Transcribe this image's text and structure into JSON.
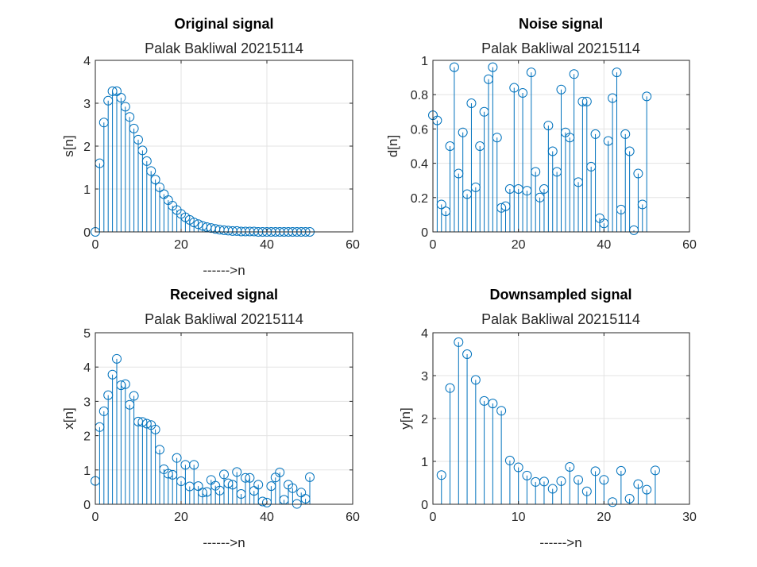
{
  "chart_data": [
    {
      "type": "stem",
      "title": "Original signal",
      "subtitle": "Palak Bakliwal 20215114",
      "xlabel": "------>n",
      "ylabel": "s[n]",
      "xlim": [
        0,
        60
      ],
      "ylim": [
        0,
        4
      ],
      "xticks": [
        0,
        20,
        40,
        60
      ],
      "yticks": [
        0,
        1,
        2,
        3,
        4
      ],
      "grid": true,
      "x": [
        0,
        1,
        2,
        3,
        4,
        5,
        6,
        7,
        8,
        9,
        10,
        11,
        12,
        13,
        14,
        15,
        16,
        17,
        18,
        19,
        20,
        21,
        22,
        23,
        24,
        25,
        26,
        27,
        28,
        29,
        30,
        31,
        32,
        33,
        34,
        35,
        36,
        37,
        38,
        39,
        40,
        41,
        42,
        43,
        44,
        45,
        46,
        47,
        48,
        49,
        50
      ],
      "values": [
        0,
        1.6,
        2.55,
        3.06,
        3.28,
        3.28,
        3.13,
        2.92,
        2.68,
        2.41,
        2.15,
        1.9,
        1.65,
        1.42,
        1.22,
        1.04,
        0.88,
        0.74,
        0.61,
        0.51,
        0.42,
        0.34,
        0.28,
        0.22,
        0.18,
        0.14,
        0.11,
        0.09,
        0.07,
        0.05,
        0.04,
        0.03,
        0.02,
        0.02,
        0.01,
        0.01,
        0.01,
        0.01,
        0,
        0,
        0,
        0,
        0,
        0,
        0,
        0,
        0,
        0,
        0,
        0,
        0
      ]
    },
    {
      "type": "stem",
      "title": "Noise signal",
      "subtitle": "Palak Bakliwal 20215114",
      "xlabel": "",
      "ylabel": "d[n]",
      "xlim": [
        0,
        60
      ],
      "ylim": [
        0,
        1
      ],
      "xticks": [
        0,
        20,
        40,
        60
      ],
      "yticks": [
        0,
        0.2,
        0.4,
        0.6,
        0.8,
        1
      ],
      "grid": true,
      "x": [
        0,
        1,
        2,
        3,
        4,
        5,
        6,
        7,
        8,
        9,
        10,
        11,
        12,
        13,
        14,
        15,
        16,
        17,
        18,
        19,
        20,
        21,
        22,
        23,
        24,
        25,
        26,
        27,
        28,
        29,
        30,
        31,
        32,
        33,
        34,
        35,
        36,
        37,
        38,
        39,
        40,
        41,
        42,
        43,
        44,
        45,
        46,
        47,
        48,
        49,
        50
      ],
      "values": [
        0.68,
        0.65,
        0.16,
        0.12,
        0.5,
        0.96,
        0.34,
        0.58,
        0.22,
        0.75,
        0.26,
        0.5,
        0.7,
        0.89,
        0.96,
        0.55,
        0.14,
        0.15,
        0.25,
        0.84,
        0.25,
        0.81,
        0.24,
        0.93,
        0.35,
        0.2,
        0.25,
        0.62,
        0.47,
        0.35,
        0.83,
        0.58,
        0.55,
        0.92,
        0.29,
        0.76,
        0.76,
        0.38,
        0.57,
        0.08,
        0.05,
        0.53,
        0.78,
        0.93,
        0.13,
        0.57,
        0.47,
        0.01,
        0.34,
        0.16,
        0.79
      ]
    },
    {
      "type": "stem",
      "title": "Received signal",
      "subtitle": "Palak Bakliwal 20215114",
      "xlabel": "------>n",
      "ylabel": "x[n]",
      "xlim": [
        0,
        60
      ],
      "ylim": [
        0,
        5
      ],
      "xticks": [
        0,
        20,
        40,
        60
      ],
      "yticks": [
        0,
        1,
        2,
        3,
        4,
        5
      ],
      "grid": true,
      "x": [
        0,
        1,
        2,
        3,
        4,
        5,
        6,
        7,
        8,
        9,
        10,
        11,
        12,
        13,
        14,
        15,
        16,
        17,
        18,
        19,
        20,
        21,
        22,
        23,
        24,
        25,
        26,
        27,
        28,
        29,
        30,
        31,
        32,
        33,
        34,
        35,
        36,
        37,
        38,
        39,
        40,
        41,
        42,
        43,
        44,
        45,
        46,
        47,
        48,
        49,
        50
      ],
      "values": [
        0.68,
        2.25,
        2.71,
        3.18,
        3.78,
        4.24,
        3.47,
        3.5,
        2.9,
        3.16,
        2.41,
        2.4,
        2.35,
        2.31,
        2.18,
        1.59,
        1.02,
        0.89,
        0.86,
        1.35,
        0.67,
        1.15,
        0.52,
        1.15,
        0.53,
        0.34,
        0.36,
        0.71,
        0.54,
        0.4,
        0.87,
        0.61,
        0.57,
        0.94,
        0.3,
        0.77,
        0.77,
        0.39,
        0.57,
        0.08,
        0.05,
        0.53,
        0.78,
        0.93,
        0.13,
        0.57,
        0.47,
        0.01,
        0.34,
        0.16,
        0.79
      ]
    },
    {
      "type": "stem",
      "title": "Downsampled signal",
      "subtitle": "Palak Bakliwal 20215114",
      "xlabel": "------>n",
      "ylabel": "y[n]",
      "xlim": [
        0,
        30
      ],
      "ylim": [
        0,
        4
      ],
      "xticks": [
        0,
        10,
        20,
        30
      ],
      "yticks": [
        0,
        1,
        2,
        3,
        4
      ],
      "grid": true,
      "x": [
        1,
        2,
        3,
        4,
        5,
        6,
        7,
        8,
        9,
        10,
        11,
        12,
        13,
        14,
        15,
        16,
        17,
        18,
        19,
        20,
        21,
        22,
        23,
        24,
        25,
        26
      ],
      "values": [
        0.68,
        2.71,
        3.78,
        3.5,
        2.9,
        2.41,
        2.35,
        2.18,
        1.02,
        0.86,
        0.67,
        0.52,
        0.53,
        0.36,
        0.54,
        0.87,
        0.57,
        0.3,
        0.77,
        0.57,
        0.05,
        0.78,
        0.13,
        0.47,
        0.34,
        0.79
      ]
    }
  ],
  "colors": {
    "stem": "#0072bd",
    "axes": "#262626",
    "grid": "#e3e3e3"
  },
  "layout_labels": {
    "noise_xlabel_visible": false
  }
}
